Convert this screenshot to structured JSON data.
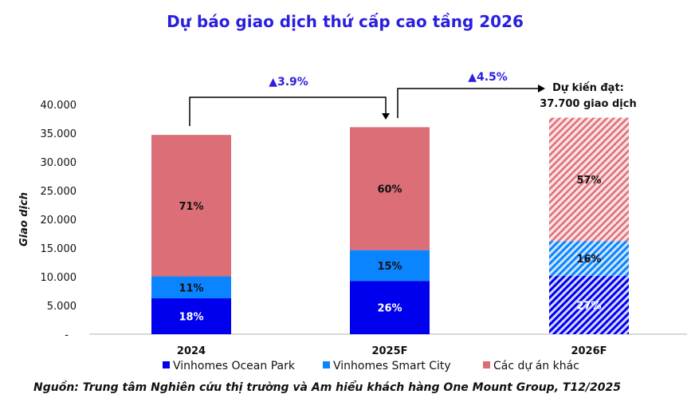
{
  "chart_data": {
    "type": "bar",
    "stacked": true,
    "title": "Dự báo giao dịch thứ cấp cao tầng 2026",
    "ylabel": "Giao dịch",
    "xlabel": "",
    "ylim": [
      0,
      40000
    ],
    "yticks": [
      "-",
      "5.000",
      "10.000",
      "15.000",
      "20.000",
      "25.000",
      "30.000",
      "35.000",
      "40.000"
    ],
    "categories": [
      "2024",
      "2025F",
      "2026F"
    ],
    "totals": [
      34700,
      36050,
      37700
    ],
    "forecast": [
      false,
      false,
      true
    ],
    "series": [
      {
        "name": "Vinhomes Ocean Park",
        "color": "#0000ee",
        "shares": [
          18,
          26,
          27
        ],
        "labels": [
          "18%",
          "26%",
          "27%"
        ]
      },
      {
        "name": "Vinhomes Smart City",
        "color": "#0a84ff",
        "shares": [
          11,
          15,
          16
        ],
        "labels": [
          "11%",
          "15%",
          "16%"
        ]
      },
      {
        "name": "Các dự án khác",
        "color": "#dc6e78",
        "shares": [
          71,
          60,
          57
        ],
        "labels": [
          "71%",
          "60%",
          "57%"
        ]
      }
    ],
    "annotations": {
      "growth_1": "▲3.9%",
      "growth_2": "▲4.5%",
      "target_line1": "Dự kiến đạt:",
      "target_line2": "37.700 giao dịch"
    },
    "legend": "bottom",
    "grid": false
  },
  "source": "Nguồn:  Trung tâm Nghiên cứu thị trường và Am hiểu khách hàng One Mount Group, T12/2025"
}
